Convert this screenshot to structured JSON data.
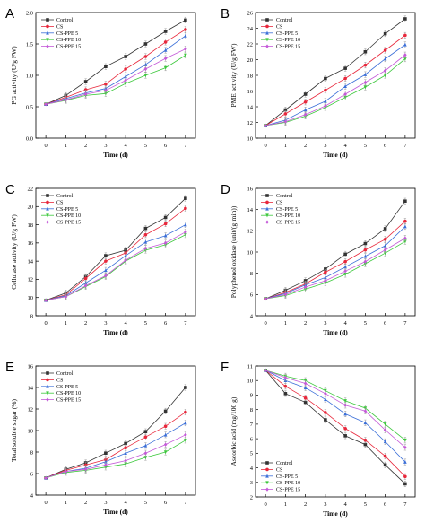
{
  "series_styles": [
    {
      "name": "Control",
      "color": "#333333",
      "marker": "square"
    },
    {
      "name": "CS",
      "color": "#e8283c",
      "marker": "circle"
    },
    {
      "name": "CS-PPE 5",
      "color": "#3b6fd8",
      "marker": "triangle"
    },
    {
      "name": "CS-PPE 10",
      "color": "#3cc83c",
      "marker": "triangle-down"
    },
    {
      "name": "CS-PPE 15",
      "color": "#c45ad8",
      "marker": "diamond"
    }
  ],
  "chart_data": [
    {
      "letter": "A",
      "type": "line",
      "xlabel": "Time (d)",
      "ylabel": "PG activity (U/g FW)",
      "xticks": [
        0,
        1,
        2,
        3,
        4,
        5,
        6,
        7
      ],
      "xlim": [
        -0.5,
        7.5
      ],
      "yticks": [
        0.0,
        0.5,
        1.0,
        1.5,
        2.0
      ],
      "yticklabels": [
        "0.0",
        "0.5",
        "1.0",
        "1.5",
        "2.0"
      ],
      "ylim": [
        0.0,
        2.0
      ],
      "legend_position": "top-left",
      "x": [
        0,
        1,
        2,
        3,
        4,
        5,
        6,
        7
      ],
      "series": [
        {
          "name": "Control",
          "values": [
            0.54,
            0.68,
            0.9,
            1.14,
            1.3,
            1.5,
            1.7,
            1.88
          ]
        },
        {
          "name": "CS",
          "values": [
            0.54,
            0.65,
            0.77,
            0.86,
            1.1,
            1.3,
            1.53,
            1.73
          ]
        },
        {
          "name": "CS-PPE 5",
          "values": [
            0.54,
            0.63,
            0.72,
            0.79,
            0.98,
            1.17,
            1.4,
            1.63
          ]
        },
        {
          "name": "CS-PPE 10",
          "values": [
            0.54,
            0.6,
            0.68,
            0.71,
            0.87,
            1.0,
            1.12,
            1.32
          ]
        },
        {
          "name": "CS-PPE 15",
          "values": [
            0.54,
            0.61,
            0.7,
            0.76,
            0.92,
            1.1,
            1.27,
            1.42
          ]
        }
      ]
    },
    {
      "letter": "B",
      "type": "line",
      "xlabel": "Time (d)",
      "ylabel": "PME activity (U/g FW)",
      "xticks": [
        0,
        1,
        2,
        3,
        4,
        5,
        6,
        7
      ],
      "xlim": [
        -0.5,
        7.5
      ],
      "yticks": [
        10,
        12,
        14,
        16,
        18,
        20,
        22,
        24,
        26
      ],
      "yticklabels": [
        "10",
        "12",
        "14",
        "16",
        "18",
        "20",
        "22",
        "24",
        "26"
      ],
      "ylim": [
        10,
        26
      ],
      "legend_position": "top-left",
      "x": [
        0,
        1,
        2,
        3,
        4,
        5,
        6,
        7
      ],
      "series": [
        {
          "name": "Control",
          "values": [
            11.6,
            13.6,
            15.6,
            17.6,
            18.9,
            21.0,
            23.3,
            25.2
          ]
        },
        {
          "name": "CS",
          "values": [
            11.6,
            13.1,
            14.6,
            16.1,
            17.6,
            19.3,
            21.2,
            23.1
          ]
        },
        {
          "name": "CS-PPE 5",
          "values": [
            11.6,
            12.3,
            13.6,
            14.7,
            16.6,
            18.1,
            20.1,
            21.9
          ]
        },
        {
          "name": "CS-PPE 10",
          "values": [
            11.6,
            12.0,
            12.8,
            13.9,
            15.2,
            16.5,
            18.0,
            20.1
          ]
        },
        {
          "name": "CS-PPE 15",
          "values": [
            11.6,
            12.1,
            13.0,
            14.1,
            15.6,
            17.1,
            18.6,
            20.6
          ]
        }
      ]
    },
    {
      "letter": "C",
      "type": "line",
      "xlabel": "Time (d)",
      "ylabel": "Cellulase activity (U/g FW)",
      "xticks": [
        0,
        1,
        2,
        3,
        4,
        5,
        6,
        7
      ],
      "xlim": [
        -0.5,
        7.5
      ],
      "yticks": [
        8,
        10,
        12,
        14,
        16,
        18,
        20,
        22
      ],
      "yticklabels": [
        "8",
        "10",
        "12",
        "14",
        "16",
        "18",
        "20",
        "22"
      ],
      "ylim": [
        8,
        22
      ],
      "legend_position": "top-left",
      "x": [
        0,
        1,
        2,
        3,
        4,
        5,
        6,
        7
      ],
      "series": [
        {
          "name": "Control",
          "values": [
            9.7,
            10.5,
            12.3,
            14.6,
            15.2,
            17.6,
            18.8,
            20.9
          ]
        },
        {
          "name": "CS",
          "values": [
            9.7,
            10.3,
            12.1,
            14.0,
            14.9,
            16.9,
            18.1,
            19.8
          ]
        },
        {
          "name": "CS-PPE 5",
          "values": [
            9.7,
            10.2,
            11.6,
            13.0,
            14.6,
            16.1,
            16.8,
            18.0
          ]
        },
        {
          "name": "CS-PPE 10",
          "values": [
            9.7,
            10.1,
            11.2,
            12.3,
            14.0,
            15.2,
            15.8,
            16.9
          ]
        },
        {
          "name": "CS-PPE 15",
          "values": [
            9.7,
            10.1,
            11.3,
            12.4,
            14.1,
            15.4,
            16.0,
            17.2
          ]
        }
      ]
    },
    {
      "letter": "D",
      "type": "line",
      "xlabel": "Time (d)",
      "ylabel": "Polyphenol oxidase (unit/(g·min))",
      "xticks": [
        0,
        1,
        2,
        3,
        4,
        5,
        6,
        7
      ],
      "xlim": [
        -0.5,
        7.5
      ],
      "yticks": [
        4,
        6,
        8,
        10,
        12,
        14,
        16
      ],
      "yticklabels": [
        "4",
        "6",
        "8",
        "10",
        "12",
        "14",
        "16"
      ],
      "ylim": [
        4,
        16
      ],
      "legend_position": "top-left",
      "x": [
        0,
        1,
        2,
        3,
        4,
        5,
        6,
        7
      ],
      "series": [
        {
          "name": "Control",
          "values": [
            5.6,
            6.4,
            7.3,
            8.4,
            9.8,
            10.8,
            12.2,
            14.8
          ]
        },
        {
          "name": "CS",
          "values": [
            5.6,
            6.2,
            7.0,
            8.1,
            9.1,
            10.2,
            11.2,
            12.9
          ]
        },
        {
          "name": "CS-PPE 5",
          "values": [
            5.6,
            6.1,
            6.9,
            7.6,
            8.6,
            9.6,
            10.6,
            12.4
          ]
        },
        {
          "name": "CS-PPE 10",
          "values": [
            5.6,
            5.9,
            6.5,
            7.1,
            7.9,
            8.9,
            9.9,
            11.0
          ]
        },
        {
          "name": "CS-PPE 15",
          "values": [
            5.6,
            6.0,
            6.7,
            7.3,
            8.2,
            9.1,
            10.2,
            11.3
          ]
        }
      ]
    },
    {
      "letter": "E",
      "type": "line",
      "xlabel": "Time (d)",
      "ylabel": "Total soluble sugar (%)",
      "xticks": [
        0,
        1,
        2,
        3,
        4,
        5,
        6,
        7
      ],
      "xlim": [
        -0.5,
        7.5
      ],
      "yticks": [
        4,
        6,
        8,
        10,
        12,
        14,
        16
      ],
      "yticklabels": [
        "4",
        "6",
        "8",
        "10",
        "12",
        "14",
        "16"
      ],
      "ylim": [
        4,
        16
      ],
      "legend_position": "top-left",
      "x": [
        0,
        1,
        2,
        3,
        4,
        5,
        6,
        7
      ],
      "series": [
        {
          "name": "Control",
          "values": [
            5.6,
            6.4,
            7.0,
            7.9,
            8.8,
            9.9,
            11.8,
            14.0
          ]
        },
        {
          "name": "CS",
          "values": [
            5.6,
            6.3,
            6.8,
            7.3,
            8.4,
            9.4,
            10.4,
            11.7
          ]
        },
        {
          "name": "CS-PPE 5",
          "values": [
            5.6,
            6.2,
            6.5,
            7.1,
            7.9,
            8.6,
            9.6,
            10.7
          ]
        },
        {
          "name": "CS-PPE 10",
          "values": [
            5.6,
            6.1,
            6.3,
            6.6,
            6.9,
            7.5,
            8.0,
            9.1
          ]
        },
        {
          "name": "CS-PPE 15",
          "values": [
            5.6,
            6.2,
            6.4,
            6.8,
            7.2,
            7.9,
            8.7,
            9.6
          ]
        }
      ]
    },
    {
      "letter": "F",
      "type": "line",
      "xlabel": "Time (d)",
      "ylabel": "Ascorbic acid (mg/100 g)",
      "xticks": [
        0,
        1,
        2,
        3,
        4,
        5,
        6,
        7
      ],
      "xlim": [
        -0.5,
        7.5
      ],
      "yticks": [
        2,
        3,
        4,
        5,
        6,
        7,
        8,
        9,
        10,
        11
      ],
      "yticklabels": [
        "2",
        "3",
        "4",
        "5",
        "6",
        "7",
        "8",
        "9",
        "10",
        "11"
      ],
      "ylim": [
        2,
        11
      ],
      "legend_position": "bottom-left",
      "x": [
        0,
        1,
        2,
        3,
        4,
        5,
        6,
        7
      ],
      "series": [
        {
          "name": "Control",
          "values": [
            10.7,
            9.1,
            8.5,
            7.3,
            6.2,
            5.6,
            4.2,
            2.9
          ]
        },
        {
          "name": "CS",
          "values": [
            10.7,
            9.6,
            8.8,
            7.8,
            6.7,
            5.9,
            4.8,
            3.4
          ]
        },
        {
          "name": "CS-PPE 5",
          "values": [
            10.7,
            10.0,
            9.5,
            8.7,
            7.7,
            7.1,
            5.8,
            4.4
          ]
        },
        {
          "name": "CS-PPE 10",
          "values": [
            10.7,
            10.3,
            10.0,
            9.3,
            8.6,
            8.1,
            7.0,
            5.9
          ]
        },
        {
          "name": "CS-PPE 15",
          "values": [
            10.7,
            10.2,
            9.8,
            9.1,
            8.3,
            7.9,
            6.6,
            5.4
          ]
        }
      ]
    }
  ]
}
